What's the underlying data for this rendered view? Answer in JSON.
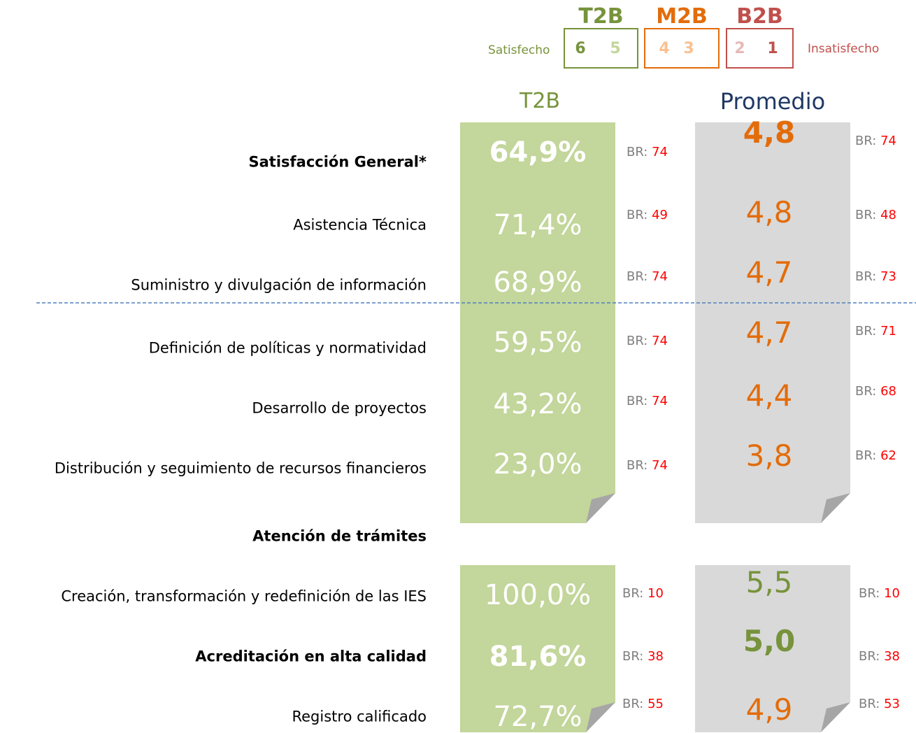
{
  "legend": {
    "left": "Satisfecho",
    "right": "Insatisfecho",
    "groups": [
      {
        "label": "T2B",
        "scores": [
          "6",
          "5"
        ]
      },
      {
        "label": "M2B",
        "scores": [
          "4",
          "3"
        ]
      },
      {
        "label": "B2B",
        "scores": [
          "2",
          "1"
        ]
      }
    ]
  },
  "columns": {
    "t2b": "T2B",
    "avg": "Promedio"
  },
  "base_label": "BR:",
  "groups": [
    {
      "rows": [
        {
          "label": "Satisfacción General*",
          "emphasis": true,
          "t2b": "64,9%",
          "t2b_base": "74",
          "avg": "4,8",
          "avg_base": "74",
          "avg_color": "#e36c0a"
        },
        {
          "label": "Asistencia Técnica",
          "emphasis": false,
          "t2b": "71,4%",
          "t2b_base": "49",
          "avg": "4,8",
          "avg_base": "48",
          "avg_color": "#e36c0a"
        },
        {
          "label": "Suministro y divulgación de información",
          "emphasis": false,
          "t2b": "68,9%",
          "t2b_base": "74",
          "avg": "4,7",
          "avg_base": "73",
          "avg_color": "#e36c0a"
        },
        {
          "label": "Definición de políticas y normatividad",
          "emphasis": false,
          "t2b": "59,5%",
          "t2b_base": "74",
          "avg": "4,7",
          "avg_base": "71",
          "avg_color": "#e36c0a"
        },
        {
          "label": "Desarrollo de proyectos",
          "emphasis": false,
          "t2b": "43,2%",
          "t2b_base": "74",
          "avg": "4,4",
          "avg_base": "68",
          "avg_color": "#e36c0a"
        },
        {
          "label": "Distribución y seguimiento de recursos financieros",
          "emphasis": false,
          "t2b": "23,0%",
          "t2b_base": "74",
          "avg": "3,8",
          "avg_base": "62",
          "avg_color": "#e36c0a"
        }
      ]
    },
    {
      "title": "Atención de trámites",
      "rows": [
        {
          "label": "Creación, transformación y redefinición de las IES",
          "emphasis": false,
          "t2b": "100,0%",
          "t2b_base": "10",
          "avg": "5,5",
          "avg_base": "10",
          "avg_color": "#77933c"
        },
        {
          "label": "Acreditación en alta calidad",
          "emphasis": true,
          "t2b": "81,6%",
          "t2b_base": "38",
          "avg": "5,0",
          "avg_base": "38",
          "avg_color": "#77933c"
        },
        {
          "label": "Registro calificado",
          "emphasis": false,
          "t2b": "72,7%",
          "t2b_base": "55",
          "avg": "4,9",
          "avg_base": "53",
          "avg_color": "#e36c0a"
        }
      ]
    }
  ]
}
